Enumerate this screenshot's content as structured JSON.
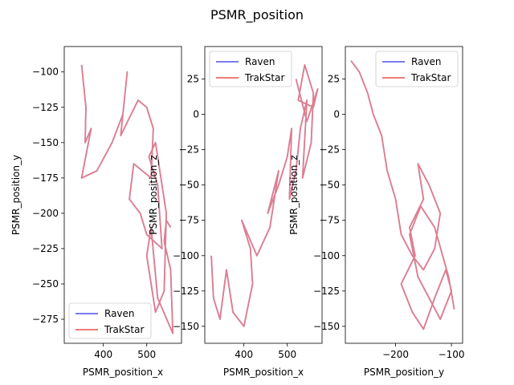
{
  "figure": {
    "suptitle": "PSMR_position"
  },
  "chart_data": [
    {
      "type": "line",
      "xlabel": "PSMR_position_x",
      "ylabel": "PSMR_position_y",
      "xlim": [
        310,
        580
      ],
      "ylim": [
        -292,
        -82
      ],
      "xticks": [
        400,
        500
      ],
      "yticks": [
        -100,
        -125,
        -150,
        -175,
        -200,
        -225,
        -250,
        -275
      ],
      "legend": {
        "position": "lower-left"
      },
      "series": [
        {
          "name": "Raven",
          "color": "#7b7bf0",
          "x": [
            350,
            360,
            358,
            372,
            350,
            385,
            420,
            445,
            455,
            440,
            480,
            500,
            515,
            510,
            470,
            460,
            485,
            500,
            535,
            525,
            505,
            520,
            545,
            540,
            520,
            500,
            510,
            525,
            560,
            555,
            540,
            545,
            555
          ],
          "y": [
            -95,
            -125,
            -150,
            -140,
            -175,
            -170,
            -150,
            -130,
            -100,
            -145,
            -120,
            -125,
            -140,
            -175,
            -165,
            -190,
            -200,
            -215,
            -225,
            -180,
            -160,
            -150,
            -200,
            -255,
            -270,
            -230,
            -210,
            -260,
            -285,
            -240,
            -220,
            -205,
            -210
          ]
        },
        {
          "name": "TrakStar",
          "color": "#f07b7b",
          "x": [
            350,
            360,
            358,
            372,
            350,
            385,
            420,
            445,
            455,
            440,
            480,
            500,
            515,
            510,
            470,
            460,
            485,
            500,
            535,
            525,
            505,
            520,
            545,
            540,
            520,
            500,
            510,
            525,
            560,
            555,
            540,
            545,
            555
          ],
          "y": [
            -95,
            -125,
            -150,
            -140,
            -175,
            -170,
            -150,
            -130,
            -100,
            -145,
            -120,
            -125,
            -140,
            -175,
            -165,
            -190,
            -200,
            -215,
            -225,
            -180,
            -160,
            -150,
            -200,
            -255,
            -270,
            -230,
            -210,
            -260,
            -285,
            -240,
            -220,
            -205,
            -210
          ]
        }
      ]
    },
    {
      "type": "line",
      "xlabel": "PSMR_position_x",
      "ylabel": "PSMR_position_z",
      "xlim": [
        310,
        580
      ],
      "ylim": [
        -162,
        48
      ],
      "xticks": [
        400,
        500
      ],
      "yticks": [
        25,
        0,
        -25,
        -50,
        -75,
        -100,
        -125,
        -150
      ],
      "legend": {
        "position": "upper-left"
      },
      "series": [
        {
          "name": "Raven",
          "color": "#7b7bf0",
          "x": [
            325,
            330,
            345,
            360,
            375,
            400,
            420,
            415,
            395,
            430,
            460,
            470,
            480,
            455,
            480,
            500,
            510,
            505,
            520,
            530,
            545,
            535,
            555,
            560,
            540,
            525,
            560,
            570,
            545,
            520
          ],
          "y": [
            -100,
            -130,
            -145,
            -110,
            -140,
            -150,
            -120,
            -95,
            -75,
            -100,
            -80,
            -60,
            -40,
            -70,
            -50,
            -30,
            -10,
            -60,
            -40,
            -10,
            10,
            -45,
            -20,
            15,
            35,
            10,
            5,
            18,
            -5,
            25
          ]
        },
        {
          "name": "TrakStar",
          "color": "#f07b7b",
          "x": [
            325,
            330,
            345,
            360,
            375,
            400,
            420,
            415,
            395,
            430,
            460,
            470,
            480,
            455,
            480,
            500,
            510,
            505,
            520,
            530,
            545,
            535,
            555,
            560,
            540,
            525,
            560,
            570,
            545,
            520
          ],
          "y": [
            -100,
            -130,
            -145,
            -110,
            -140,
            -150,
            -120,
            -95,
            -75,
            -100,
            -80,
            -60,
            -40,
            -70,
            -50,
            -30,
            -10,
            -60,
            -40,
            -10,
            10,
            -45,
            -20,
            15,
            35,
            10,
            5,
            18,
            -5,
            25
          ]
        }
      ]
    },
    {
      "type": "line",
      "xlabel": "PSMR_position_y",
      "ylabel": "PSMR_position_z",
      "xlim": [
        -290,
        -80
      ],
      "ylim": [
        -162,
        48
      ],
      "xticks": [
        -200,
        -100
      ],
      "yticks": [
        25,
        0,
        -25,
        -50,
        -75,
        -100,
        -125,
        -150
      ],
      "legend": {
        "position": "upper-right"
      },
      "series": [
        {
          "name": "Raven",
          "color": "#7b7bf0",
          "x": [
            -280,
            -265,
            -250,
            -240,
            -225,
            -215,
            -200,
            -190,
            -170,
            -150,
            -130,
            -120,
            -140,
            -160,
            -150,
            -175,
            -165,
            -190,
            -170,
            -150,
            -130,
            -110,
            -100,
            -120,
            -140,
            -160,
            -175,
            -155,
            -130,
            -105,
            -95
          ],
          "y": [
            38,
            30,
            15,
            0,
            -15,
            -40,
            -60,
            -85,
            -100,
            -110,
            -95,
            -70,
            -50,
            -35,
            -60,
            -80,
            -100,
            -120,
            -140,
            -152,
            -130,
            -110,
            -125,
            -145,
            -130,
            -115,
            -85,
            -65,
            -80,
            -115,
            -138
          ]
        },
        {
          "name": "TrakStar",
          "color": "#f07b7b",
          "x": [
            -280,
            -265,
            -250,
            -240,
            -225,
            -215,
            -200,
            -190,
            -170,
            -150,
            -130,
            -120,
            -140,
            -160,
            -150,
            -175,
            -165,
            -190,
            -170,
            -150,
            -130,
            -110,
            -100,
            -120,
            -140,
            -160,
            -175,
            -155,
            -130,
            -105,
            -95
          ],
          "y": [
            38,
            30,
            15,
            0,
            -15,
            -40,
            -60,
            -85,
            -100,
            -110,
            -95,
            -70,
            -50,
            -35,
            -60,
            -80,
            -100,
            -120,
            -140,
            -152,
            -130,
            -110,
            -125,
            -145,
            -130,
            -115,
            -85,
            -65,
            -80,
            -115,
            -138
          ]
        }
      ]
    }
  ]
}
